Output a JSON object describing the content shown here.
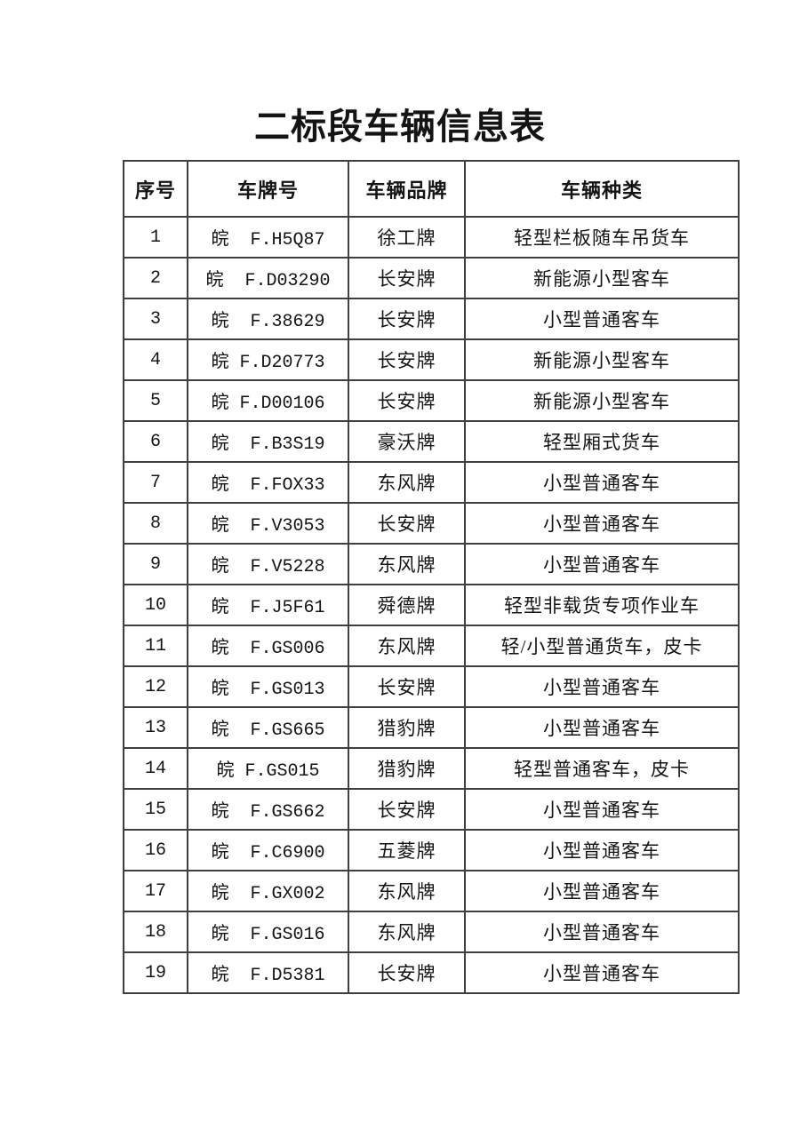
{
  "page": {
    "title": "二标段车辆信息表"
  },
  "table": {
    "headers": [
      "序号",
      "车牌号",
      "车辆品牌",
      "车辆种类"
    ],
    "rows": [
      {
        "no": "1",
        "plate": "皖  F.H5Q87",
        "brand": "徐工牌",
        "type": "轻型栏板随车吊货车"
      },
      {
        "no": "2",
        "plate": "皖  F.D03290",
        "brand": "长安牌",
        "type": "新能源小型客车"
      },
      {
        "no": "3",
        "plate": "皖  F.38629",
        "brand": "长安牌",
        "type": "小型普通客车"
      },
      {
        "no": "4",
        "plate": "皖 F.D20773",
        "brand": "长安牌",
        "type": "新能源小型客车"
      },
      {
        "no": "5",
        "plate": "皖 F.D00106",
        "brand": "长安牌",
        "type": "新能源小型客车"
      },
      {
        "no": "6",
        "plate": "皖  F.B3S19",
        "brand": "豪沃牌",
        "type": "轻型厢式货车"
      },
      {
        "no": "7",
        "plate": "皖  F.FOX33",
        "brand": "东风牌",
        "type": "小型普通客车"
      },
      {
        "no": "8",
        "plate": "皖  F.V3053",
        "brand": "长安牌",
        "type": "小型普通客车"
      },
      {
        "no": "9",
        "plate": "皖  F.V5228",
        "brand": "东风牌",
        "type": "小型普通客车"
      },
      {
        "no": "10",
        "plate": "皖  F.J5F61",
        "brand": "舜德牌",
        "type": "轻型非载货专项作业车"
      },
      {
        "no": "11",
        "plate": "皖  F.GS006",
        "brand": "东风牌",
        "type": "轻/小型普通货车，皮卡"
      },
      {
        "no": "12",
        "plate": "皖  F.GS013",
        "brand": "长安牌",
        "type": "小型普通客车"
      },
      {
        "no": "13",
        "plate": "皖  F.GS665",
        "brand": "猎豹牌",
        "type": "小型普通客车"
      },
      {
        "no": "14",
        "plate": "皖 F.GS015",
        "brand": "猎豹牌",
        "type": "轻型普通客车，皮卡"
      },
      {
        "no": "15",
        "plate": "皖  F.GS662",
        "brand": "长安牌",
        "type": "小型普通客车"
      },
      {
        "no": "16",
        "plate": "皖  F.C6900",
        "brand": "五菱牌",
        "type": "小型普通客车"
      },
      {
        "no": "17",
        "plate": "皖  F.GX002",
        "brand": "东风牌",
        "type": "小型普通客车"
      },
      {
        "no": "18",
        "plate": "皖  F.GS016",
        "brand": "东风牌",
        "type": "小型普通客车"
      },
      {
        "no": "19",
        "plate": "皖  F.D5381",
        "brand": "长安牌",
        "type": "小型普通客车"
      }
    ]
  }
}
